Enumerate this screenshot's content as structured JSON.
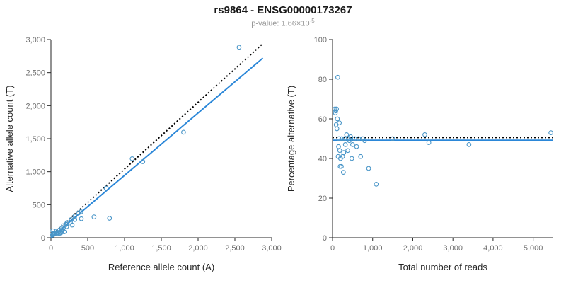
{
  "header": {
    "title": "rs9864 - ENSG00000173267",
    "subtitle_prefix": "p-value: 1.66×10",
    "subtitle_exponent": "-5"
  },
  "colors": {
    "point": "#4a96c8",
    "fit_line": "#2b87d8",
    "reference_line": "#000000",
    "axis": "#262626",
    "tick_text": "#6e6e6e",
    "title_text": "#1a1a1a",
    "subtitle_text": "#969696"
  },
  "chart_data": [
    {
      "type": "scatter",
      "title": "",
      "xlabel": "Reference allele count (A)",
      "ylabel": "Alternative allele count (T)",
      "xlim": [
        0,
        3000
      ],
      "ylim": [
        0,
        3000
      ],
      "grid": false,
      "legend": "none",
      "xticks": {
        "values": [
          0,
          500,
          1000,
          1500,
          2000,
          2500,
          3000
        ],
        "labels": [
          "0",
          "500",
          "1,000",
          "1,500",
          "2,000",
          "2,500",
          "3,000"
        ]
      },
      "yticks": {
        "values": [
          0,
          500,
          1000,
          1500,
          2000,
          2500,
          3000
        ],
        "labels": [
          "0",
          "500",
          "1,000",
          "1,500",
          "2,000",
          "2,500",
          "3,000"
        ]
      },
      "lines": [
        {
          "name": "identity-dotted-line",
          "x1": 0,
          "y1": 30,
          "x2": 2880,
          "y2": 2940,
          "style": "dotted",
          "color": "#000000"
        },
        {
          "name": "regression-line",
          "x1": 0,
          "y1": 0,
          "x2": 2880,
          "y2": 2720,
          "style": "solid",
          "color": "#2b87d8"
        }
      ],
      "points": [
        [
          21,
          39
        ],
        [
          26,
          44
        ],
        [
          29,
          51
        ],
        [
          39,
          51
        ],
        [
          35,
          65
        ],
        [
          50,
          60
        ],
        [
          48,
          72
        ],
        [
          25,
          105
        ],
        [
          83,
          57
        ],
        [
          81,
          69
        ],
        [
          80,
          80
        ],
        [
          71,
          99
        ],
        [
          101,
          79
        ],
        [
          122,
          68
        ],
        [
          120,
          80
        ],
        [
          141,
          79
        ],
        [
          115,
          115
        ],
        [
          147,
          103
        ],
        [
          181,
          89
        ],
        [
          160,
          120
        ],
        [
          150,
          150
        ],
        [
          170,
          150
        ],
        [
          168,
          182
        ],
        [
          213,
          167
        ],
        [
          200,
          200
        ],
        [
          214,
          206
        ],
        [
          220,
          230
        ],
        [
          288,
          192
        ],
        [
          265,
          235
        ],
        [
          275,
          275
        ],
        [
          324,
          276
        ],
        [
          325,
          325
        ],
        [
          413,
          287
        ],
        [
          375,
          375
        ],
        [
          408,
          392
        ],
        [
          585,
          315
        ],
        [
          796,
          294
        ],
        [
          750,
          750
        ],
        [
          1104,
          1196
        ],
        [
          1248,
          1152
        ],
        [
          1802,
          1598
        ],
        [
          2557,
          2883
        ]
      ]
    },
    {
      "type": "scatter",
      "title": "",
      "xlabel": "Total number of reads",
      "ylabel": "Percentage alternative (T)",
      "xlim": [
        0,
        5500
      ],
      "ylim": [
        0,
        100
      ],
      "grid": false,
      "legend": "none",
      "xticks": {
        "values": [
          0,
          1000,
          2000,
          3000,
          4000,
          5000
        ],
        "labels": [
          "0",
          "1,000",
          "2,000",
          "3,000",
          "4,000",
          "5,000"
        ]
      },
      "yticks": {
        "values": [
          0,
          20,
          40,
          60,
          80,
          100
        ],
        "labels": [
          "0",
          "20",
          "40",
          "60",
          "80",
          "100"
        ]
      },
      "lines": [
        {
          "name": "expected-percentage-dotted-line",
          "x1": 0,
          "y1": 50.6,
          "x2": 5500,
          "y2": 50.6,
          "style": "dotted",
          "color": "#000000"
        },
        {
          "name": "mean-percentage-line",
          "x1": 0,
          "y1": 49.2,
          "x2": 5500,
          "y2": 49.2,
          "style": "solid",
          "color": "#2b87d8"
        }
      ],
      "points": [
        [
          60,
          65
        ],
        [
          70,
          63
        ],
        [
          80,
          64
        ],
        [
          90,
          57
        ],
        [
          100,
          65
        ],
        [
          110,
          55
        ],
        [
          120,
          60
        ],
        [
          130,
          81
        ],
        [
          140,
          41
        ],
        [
          150,
          46
        ],
        [
          160,
          50
        ],
        [
          170,
          58
        ],
        [
          180,
          44
        ],
        [
          190,
          36
        ],
        [
          200,
          40
        ],
        [
          220,
          36
        ],
        [
          230,
          50
        ],
        [
          250,
          41
        ],
        [
          270,
          33
        ],
        [
          280,
          43
        ],
        [
          300,
          50
        ],
        [
          320,
          47
        ],
        [
          350,
          52
        ],
        [
          380,
          44
        ],
        [
          400,
          50
        ],
        [
          420,
          49
        ],
        [
          450,
          51
        ],
        [
          480,
          40
        ],
        [
          500,
          47
        ],
        [
          550,
          50
        ],
        [
          600,
          46
        ],
        [
          650,
          50
        ],
        [
          700,
          41
        ],
        [
          750,
          50
        ],
        [
          800,
          49
        ],
        [
          900,
          35
        ],
        [
          1090,
          27
        ],
        [
          1500,
          50
        ],
        [
          2300,
          52
        ],
        [
          2400,
          48
        ],
        [
          3400,
          47
        ],
        [
          5440,
          53
        ]
      ]
    }
  ]
}
